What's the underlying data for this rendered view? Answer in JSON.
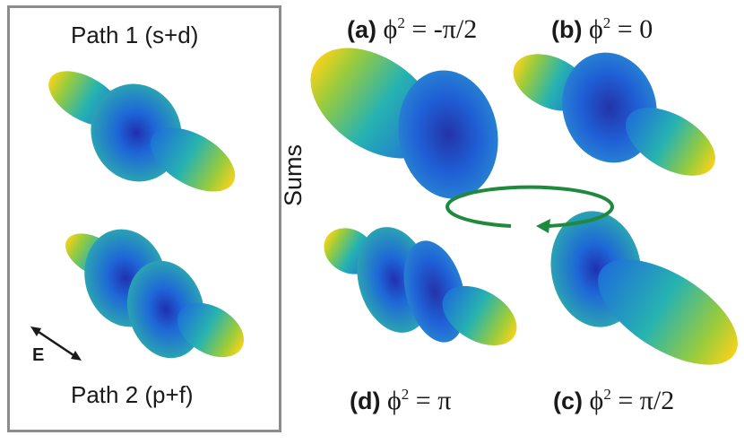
{
  "left_box": {
    "path1_title": "Path 1 (s+d)",
    "path2_title": "Path 2 (p+f)",
    "field_label": "E"
  },
  "sums_label": "Sums",
  "panels": [
    {
      "letter": "(a)",
      "symbol": "ϕ",
      "sup": "2",
      "rhs": "= -π/2"
    },
    {
      "letter": "(b)",
      "symbol": "ϕ",
      "sup": "2",
      "rhs": "= 0"
    },
    {
      "letter": "(c)",
      "symbol": "ϕ",
      "sup": "2",
      "rhs": "= π/2"
    },
    {
      "letter": "(d)",
      "symbol": "ϕ",
      "sup": "2",
      "rhs": "= π"
    }
  ],
  "colors": {
    "box_border": "#8c8c8c",
    "arrow_green": "#1f8a3c",
    "lobe_yellow": "#f5d21e",
    "lobe_green": "#3fb99a",
    "lobe_blue": "#1f5fd6",
    "lobe_dark": "#2233b0"
  }
}
